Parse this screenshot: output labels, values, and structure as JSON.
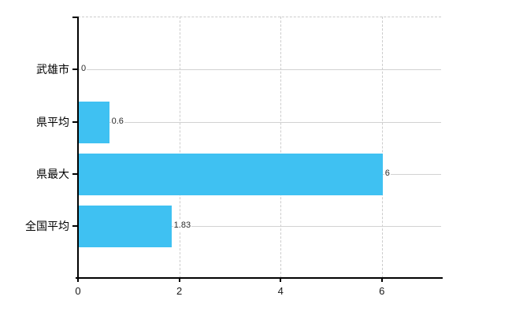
{
  "chart_data": {
    "type": "bar",
    "orientation": "horizontal",
    "title": "",
    "xlabel": "",
    "ylabel": "",
    "categories": [
      "武雄市",
      "県平均",
      "県最大",
      "全国平均"
    ],
    "values": [
      0,
      0.6,
      6,
      1.83
    ],
    "value_labels": [
      "0",
      "0.6",
      "6",
      "1.83"
    ],
    "x_ticks": [
      0,
      2,
      4,
      6
    ],
    "x_tick_labels": [
      "0",
      "2",
      "4",
      "6"
    ],
    "xlim": [
      0,
      7.2
    ],
    "grid": true,
    "legend": "none",
    "bar_color": "#3fc1f2",
    "hgrid_color": "#d2d2d2",
    "vgrid_color": "#cccccc",
    "axis_color": "#000000",
    "background_color": "#ffffff"
  }
}
